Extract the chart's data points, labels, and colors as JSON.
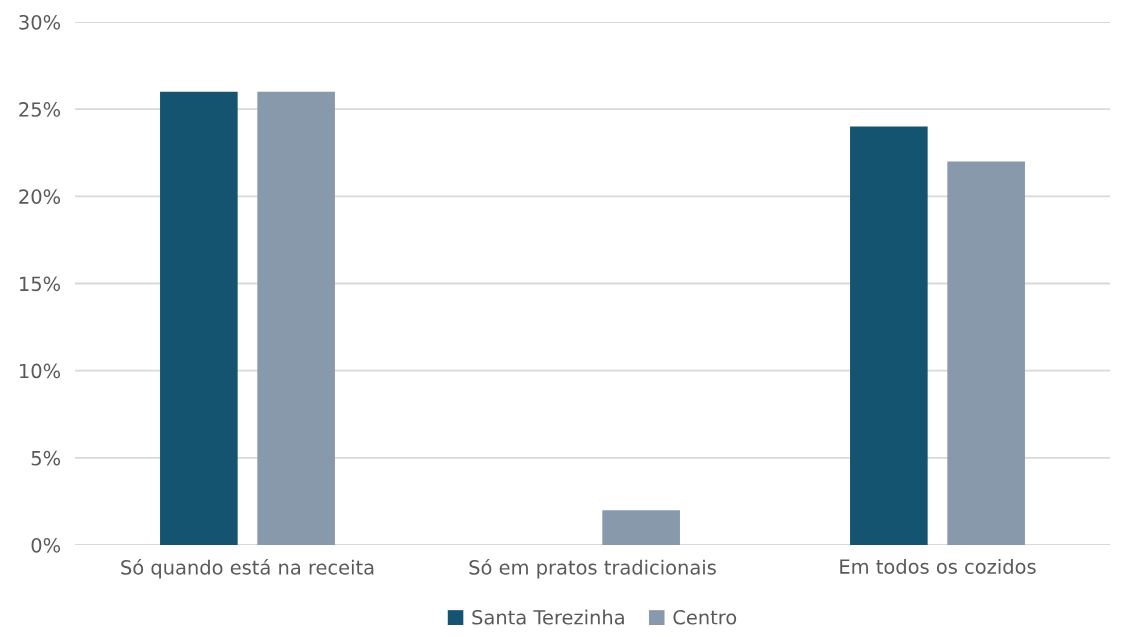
{
  "chart_data": {
    "type": "bar",
    "categories": [
      "Só quando está na receita",
      "Só em pratos tradicionais",
      "Em todos os cozidos"
    ],
    "series": [
      {
        "name": "Santa Terezinha",
        "color": "#145470",
        "values": [
          26,
          0,
          24
        ]
      },
      {
        "name": "Centro",
        "color": "#8799ab",
        "values": [
          26,
          2,
          22
        ]
      }
    ],
    "ylim": [
      0,
      30
    ],
    "yticks": [
      {
        "value": 0,
        "label": "0%"
      },
      {
        "value": 5,
        "label": "5%"
      },
      {
        "value": 10,
        "label": "10%"
      },
      {
        "value": 15,
        "label": "15%"
      },
      {
        "value": 20,
        "label": "20%"
      },
      {
        "value": 25,
        "label": "25%"
      },
      {
        "value": 30,
        "label": "30%"
      }
    ],
    "grid": "y",
    "legend": "bottom"
  }
}
